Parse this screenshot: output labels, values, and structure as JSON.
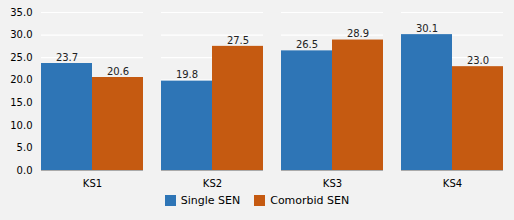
{
  "chart_data": {
    "type": "bar",
    "categories": [
      "KS1",
      "KS2",
      "KS3",
      "KS4"
    ],
    "series": [
      {
        "name": "Single SEN",
        "color": "#2E75B6",
        "values": [
          23.7,
          19.8,
          26.5,
          30.1
        ]
      },
      {
        "name": "Comorbid SEN",
        "color": "#C55A11",
        "values": [
          20.6,
          27.5,
          28.9,
          23.0
        ],
        "value_labels": [
          "20.6",
          "27.5",
          "28.9",
          "23.0"
        ]
      }
    ],
    "ylim": [
      0,
      35
    ],
    "yticks": [
      {
        "value": 0,
        "label": "0.0"
      },
      {
        "value": 5,
        "label": "5.0"
      },
      {
        "value": 10,
        "label": "10.0"
      },
      {
        "value": 15,
        "label": "15.0"
      },
      {
        "value": 20,
        "label": "20.0"
      },
      {
        "value": 25,
        "label": "25.0"
      },
      {
        "value": 30,
        "label": "30.0"
      },
      {
        "value": 35,
        "label": "35.0"
      }
    ],
    "grid": true,
    "legend": "bottom",
    "data_labels": true
  }
}
